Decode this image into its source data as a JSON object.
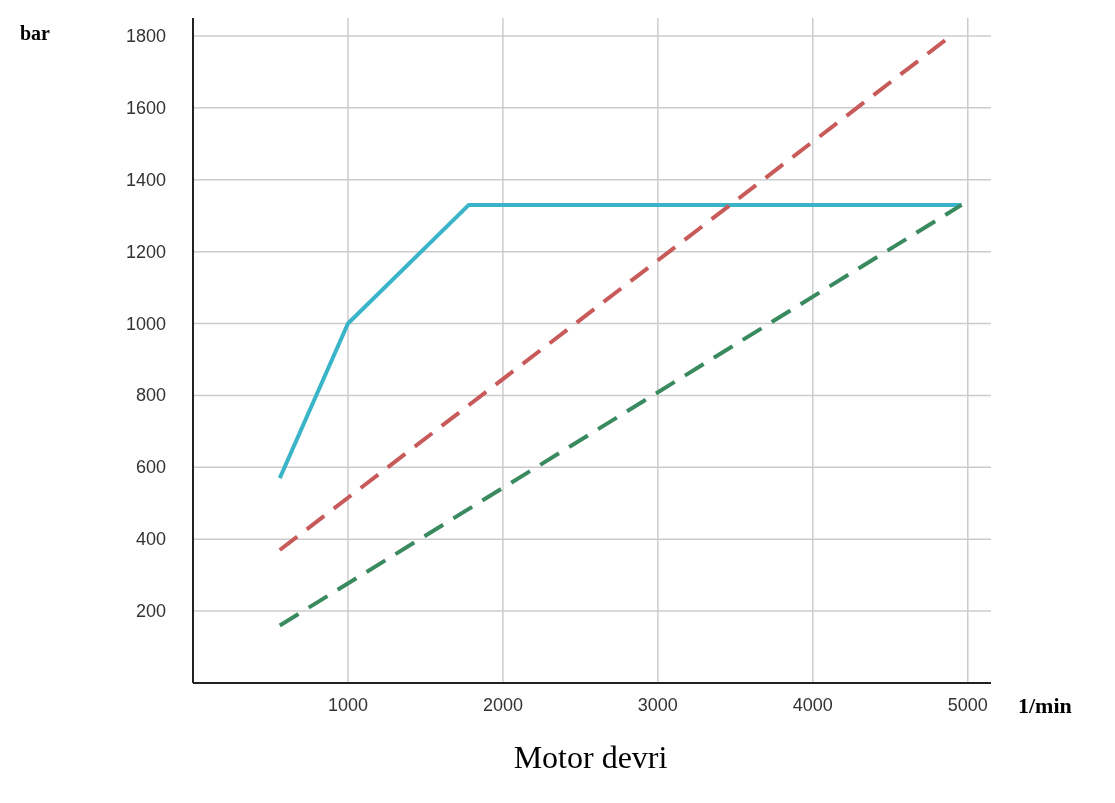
{
  "chart_data": {
    "type": "line",
    "ylabel": "bar",
    "xlabel": "Motor devri",
    "annotations": [
      "1/min"
    ],
    "xlim": [
      0,
      5150
    ],
    "ylim": [
      0,
      1850
    ],
    "xticks": [
      1000,
      2000,
      3000,
      4000,
      5000
    ],
    "yticks": [
      200,
      400,
      600,
      800,
      1000,
      1200,
      1400,
      1600,
      1800
    ],
    "grid": true,
    "series": [
      {
        "color": "#3ab4c8",
        "line_style": "solid",
        "x": [
          560,
          1000,
          1780,
          4960
        ],
        "values": [
          570,
          1000,
          1330,
          1330
        ]
      },
      {
        "color": "#c85a5a",
        "line_style": "dashed",
        "x": [
          560,
          4860
        ],
        "values": [
          370,
          1790
        ]
      },
      {
        "color": "#3a8a60",
        "line_style": "dashed",
        "x": [
          560,
          4960
        ],
        "values": [
          160,
          1330
        ]
      }
    ]
  }
}
